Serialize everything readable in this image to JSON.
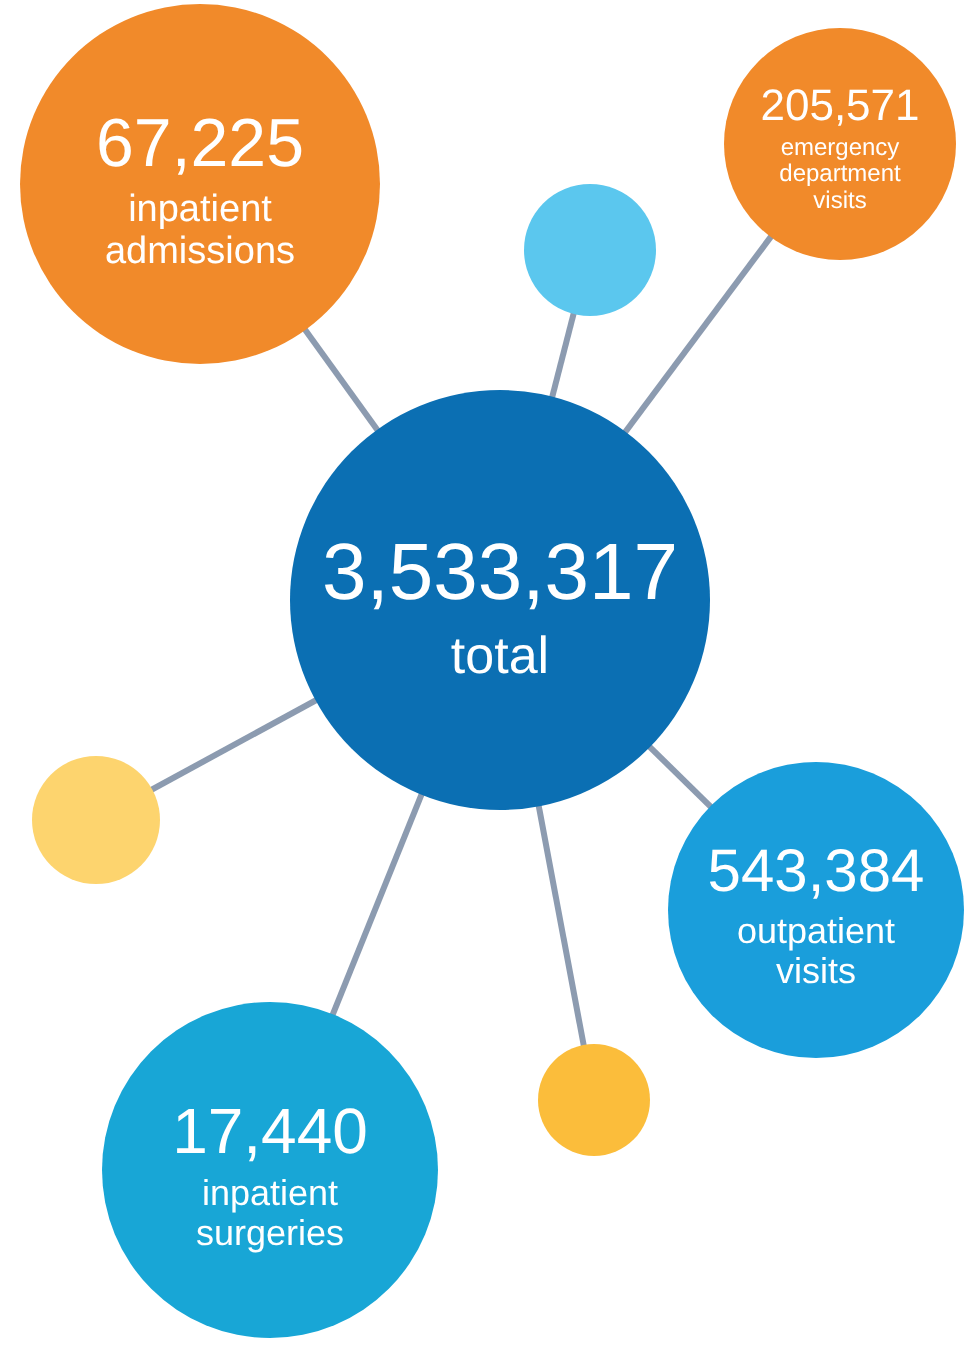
{
  "chart_data": {
    "type": "other",
    "categories": [
      "total",
      "inpatient admissions",
      "emergency department visits",
      "outpatient visits",
      "inpatient surgeries"
    ],
    "values": [
      3533317,
      67225,
      205571,
      543384,
      17440
    ],
    "value_labels": [
      "3,533,317",
      "67,225",
      "205,571",
      "543,384",
      "17,440"
    ],
    "colors": [
      "#0b6fb3",
      "#f18a2a",
      "#f18a2a",
      "#1a9edb",
      "#18a6d6"
    ]
  }
}
